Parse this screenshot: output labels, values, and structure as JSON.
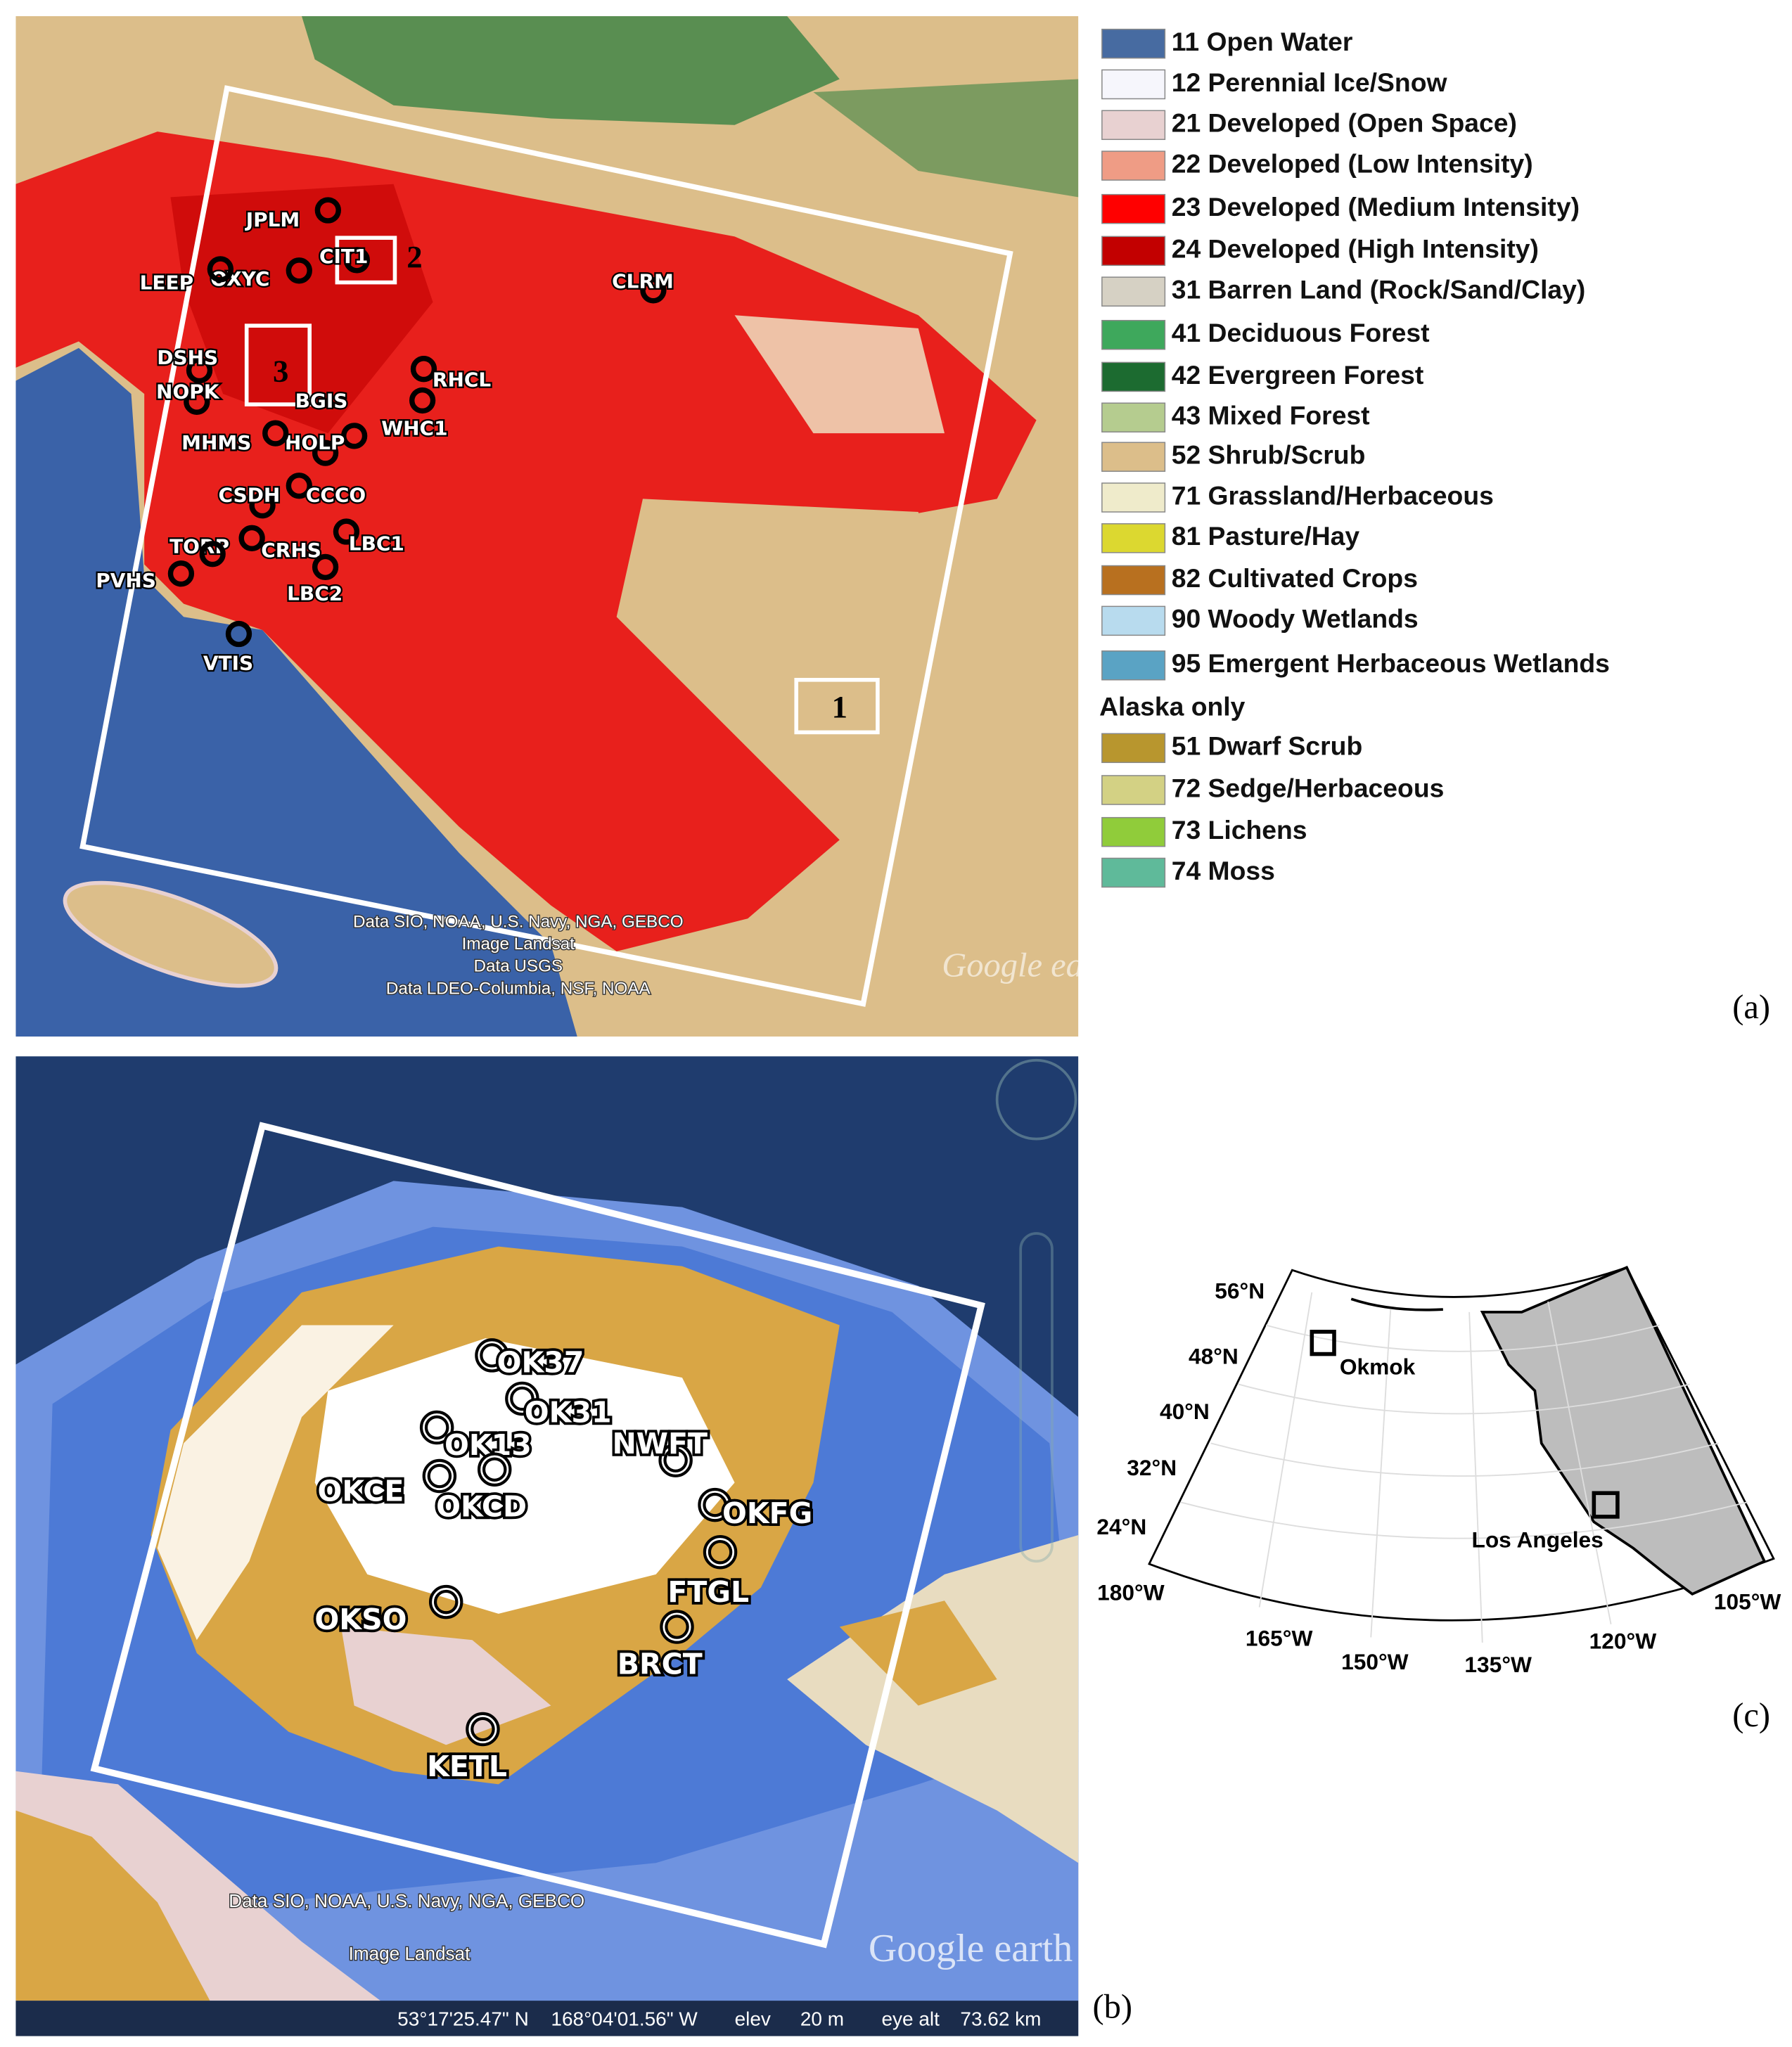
{
  "panel_a": {
    "label": "(a)",
    "stations": [
      "JPLM",
      "CIT1",
      "OXYC",
      "LEEP",
      "CLRM",
      "DSHS",
      "NOPK",
      "RHCL",
      "BGIS",
      "HOLP",
      "WHC1",
      "MHMS",
      "CSDH",
      "CCCO",
      "TORP",
      "CRHS",
      "LBC1",
      "PVHS",
      "LBC2",
      "VTIS"
    ],
    "boxes": [
      "1",
      "2",
      "3"
    ],
    "attribution": [
      "Data SIO, NOAA, U.S. Navy, NGA, GEBCO",
      "Image Landsat",
      "Data USGS",
      "Data LDEO-Columbia, NSF, NOAA"
    ],
    "watermark": "Google earth"
  },
  "legend": {
    "items": [
      {
        "label": "11 Open Water",
        "color": "#476ba1"
      },
      {
        "label": "12 Perennial Ice/Snow",
        "color": "#f6f6fc"
      },
      {
        "label": "21 Developed (Open Space)",
        "color": "#e8d1d1"
      },
      {
        "label": "22 Developed (Low Intensity)",
        "color": "#ef9c85"
      },
      {
        "label": "23 Developed (Medium Intensity)",
        "color": "#ff0000"
      },
      {
        "label": "24 Developed (High Intensity)",
        "color": "#c20000"
      },
      {
        "label": "31 Barren Land (Rock/Sand/Clay)",
        "color": "#d6d1c4"
      },
      {
        "label": "41 Deciduous Forest",
        "color": "#3ea85c"
      },
      {
        "label": "42 Evergreen Forest",
        "color": "#1c6b30"
      },
      {
        "label": "43 Mixed Forest",
        "color": "#b5cc8f"
      },
      {
        "label": "52 Shrub/Scrub",
        "color": "#dcbe8a"
      },
      {
        "label": "71 Grassland/Herbaceous",
        "color": "#efebcb"
      },
      {
        "label": "81 Pasture/Hay",
        "color": "#dcd830"
      },
      {
        "label": "82 Cultivated Crops",
        "color": "#b8701f"
      },
      {
        "label": "90 Woody Wetlands",
        "color": "#b8dbee"
      },
      {
        "label": "95 Emergent Herbaceous Wetlands",
        "color": "#5aa3c4"
      }
    ],
    "alaska_heading": "Alaska only",
    "alaska_items": [
      {
        "label": "51 Dwarf Scrub",
        "color": "#b8962e"
      },
      {
        "label": "72 Sedge/Herbaceous",
        "color": "#d3d184"
      },
      {
        "label": "73 Lichens",
        "color": "#90cc3a"
      },
      {
        "label": "74 Moss",
        "color": "#5fba9a"
      }
    ]
  },
  "panel_b": {
    "label": "(b)",
    "stations": [
      "OK37",
      "OK31",
      "OK13",
      "NWFT",
      "OKCE",
      "OKCD",
      "OKFG",
      "FTGL",
      "OKSO",
      "BRCT",
      "KETL"
    ],
    "attribution": [
      "Data SIO, NOAA, U.S. Navy, NGA, GEBCO",
      "Image Landsat"
    ],
    "watermark": "Google earth",
    "status_bar": [
      "53°17'25.47\" N",
      "168°04'01.56\" W",
      "elev",
      "20 m",
      "eye alt",
      "73.62 km"
    ]
  },
  "panel_c": {
    "label": "(c)",
    "latitudes": [
      "56°N",
      "48°N",
      "40°N",
      "32°N",
      "24°N"
    ],
    "longitudes": [
      "180°W",
      "165°W",
      "150°W",
      "135°W",
      "120°W",
      "105°W"
    ],
    "places": [
      "Okmok",
      "Los Angeles"
    ]
  }
}
